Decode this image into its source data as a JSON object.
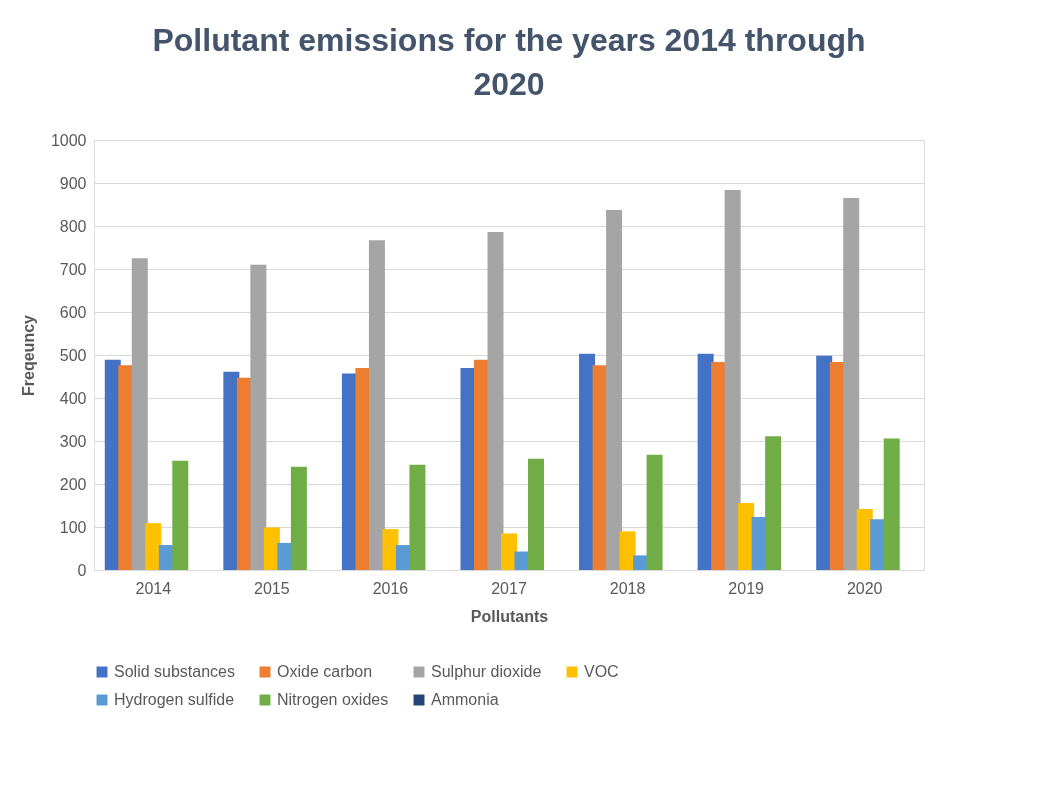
{
  "chart_data": {
    "type": "bar",
    "title": "Pollutant emissions for the years 2014 through 2020",
    "xlabel": "Pollutants",
    "ylabel": "Freqeuncy",
    "categories": [
      "2014",
      "2015",
      "2016",
      "2017",
      "2018",
      "2019",
      "2020"
    ],
    "series": [
      {
        "name": "Solid substances",
        "color": "#4472c4",
        "values": [
          489,
          461,
          457,
          470,
          503,
          503,
          498
        ]
      },
      {
        "name": "Oxide carbon",
        "color": "#ed7d31",
        "values": [
          476,
          447,
          470,
          489,
          476,
          484,
          484
        ]
      },
      {
        "name": "Sulphur dioxide",
        "color": "#a5a5a5",
        "values": [
          725,
          710,
          767,
          786,
          837,
          884,
          865
        ]
      },
      {
        "name": "VOC",
        "color": "#ffc000",
        "values": [
          109,
          99,
          95,
          85,
          90,
          156,
          142
        ]
      },
      {
        "name": "Hydrogen sulfide",
        "color": "#5b9bd5",
        "values": [
          58,
          63,
          58,
          43,
          34,
          123,
          118
        ]
      },
      {
        "name": "Nitrogen oxides",
        "color": "#70ad47",
        "values": [
          254,
          240,
          245,
          259,
          268,
          311,
          306
        ]
      },
      {
        "name": "Ammonia",
        "color": "#264478",
        "values": [
          null,
          null,
          null,
          null,
          null,
          null,
          null
        ]
      }
    ],
    "ylim": [
      0,
      1000
    ],
    "yticks": [
      0,
      100,
      200,
      300,
      400,
      500,
      600,
      700,
      800,
      900,
      1000
    ],
    "grid": "y",
    "legend": "bottom"
  }
}
